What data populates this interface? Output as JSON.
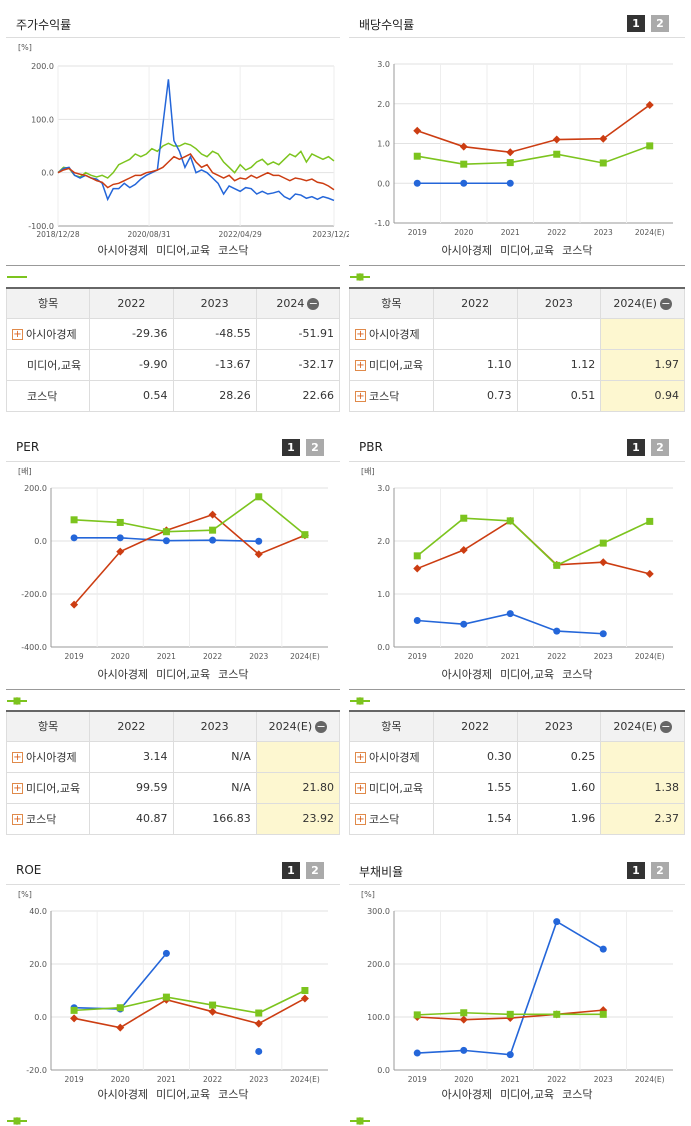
{
  "legend": [
    "아시아경제",
    "미디어,교육",
    "코스닥"
  ],
  "colors": {
    "s1": "#2466d9",
    "s2": "#cc3d12",
    "s3": "#7cc41e"
  },
  "page_buttons": [
    "1",
    "2"
  ],
  "chart_data": [
    {
      "id": "stock",
      "type": "line",
      "title": "주가수익률",
      "unit": "[%]",
      "ylim": [
        -100,
        200
      ],
      "yticks": [
        "200.0",
        "100.0",
        "0.0",
        "-100.0"
      ],
      "xticks": [
        "2018/12/28",
        "2020/08/31",
        "2022/04/29",
        "2023/12/28"
      ],
      "x": [
        0,
        2,
        4,
        6,
        8,
        10,
        12,
        14,
        16,
        18,
        20,
        22,
        24,
        26,
        28,
        30,
        32,
        34,
        36,
        38,
        40,
        42,
        44,
        46,
        48,
        50,
        52,
        54,
        56,
        58,
        60,
        62,
        64,
        66,
        68,
        70,
        72,
        74,
        76,
        78,
        80,
        82,
        84,
        86,
        88,
        90,
        92,
        94,
        96,
        98,
        100
      ],
      "series": [
        {
          "name": "아시아경제",
          "values": [
            0,
            8,
            10,
            -5,
            -10,
            -5,
            -10,
            -12,
            -20,
            -50,
            -30,
            -30,
            -20,
            -28,
            -22,
            -12,
            -5,
            0,
            5,
            90,
            175,
            60,
            40,
            10,
            30,
            0,
            5,
            0,
            -10,
            -20,
            -40,
            -25,
            -30,
            -35,
            -28,
            -30,
            -40,
            -35,
            -40,
            -38,
            -35,
            -45,
            -50,
            -40,
            -42,
            -48,
            -45,
            -50,
            -45,
            -48,
            -52
          ]
        },
        {
          "name": "미디어,교육",
          "values": [
            0,
            5,
            8,
            0,
            -3,
            -5,
            -10,
            -15,
            -18,
            -28,
            -22,
            -20,
            -15,
            -10,
            -5,
            -5,
            0,
            2,
            5,
            10,
            20,
            30,
            25,
            30,
            35,
            20,
            10,
            15,
            0,
            -5,
            -10,
            -5,
            -15,
            -10,
            -12,
            -5,
            -10,
            -5,
            0,
            -5,
            -5,
            -10,
            -15,
            -10,
            -12,
            -15,
            -12,
            -18,
            -20,
            -25,
            -32
          ]
        },
        {
          "name": "코스닥",
          "values": [
            0,
            10,
            8,
            -5,
            -8,
            0,
            -5,
            -8,
            -5,
            -10,
            0,
            15,
            20,
            25,
            35,
            30,
            35,
            45,
            40,
            50,
            55,
            50,
            50,
            55,
            52,
            45,
            35,
            30,
            40,
            35,
            20,
            10,
            0,
            15,
            5,
            10,
            20,
            25,
            15,
            20,
            15,
            25,
            35,
            30,
            40,
            20,
            35,
            30,
            25,
            30,
            22
          ]
        }
      ]
    },
    {
      "id": "div",
      "type": "line",
      "title": "배당수익률",
      "unit": "",
      "ylim": [
        -1.0,
        3.0
      ],
      "yticks": [
        "3.0",
        "2.0",
        "1.0",
        "0.0",
        "-1.0"
      ],
      "categories": [
        "2019",
        "2020",
        "2021",
        "2022",
        "2023",
        "2024(E)"
      ],
      "series": [
        {
          "name": "아시아경제",
          "values": [
            0.0,
            0.0,
            0.0,
            null,
            null,
            null
          ]
        },
        {
          "name": "미디어,교육",
          "values": [
            1.32,
            0.92,
            0.78,
            1.1,
            1.12,
            1.97
          ]
        },
        {
          "name": "코스닥",
          "values": [
            0.68,
            0.48,
            0.52,
            0.73,
            0.51,
            0.94
          ]
        }
      ]
    },
    {
      "id": "per",
      "type": "line",
      "title": "PER",
      "unit": "[배]",
      "ylim": [
        -400,
        200
      ],
      "yticks": [
        "200.0",
        "0.0",
        "-200.0",
        "-400.0"
      ],
      "categories": [
        "2019",
        "2020",
        "2021",
        "2022",
        "2023",
        "2024(E)"
      ],
      "series": [
        {
          "name": "아시아경제",
          "values": [
            12,
            12,
            1,
            3.14,
            -1,
            null
          ]
        },
        {
          "name": "미디어,교육",
          "values": [
            -240,
            -40,
            40,
            99.59,
            -50,
            21.8
          ]
        },
        {
          "name": "코스닥",
          "values": [
            80,
            70,
            35,
            40.87,
            166.83,
            23.92
          ]
        }
      ]
    },
    {
      "id": "pbr",
      "type": "line",
      "title": "PBR",
      "unit": "[배]",
      "ylim": [
        0.0,
        3.0
      ],
      "yticks": [
        "3.0",
        "2.0",
        "1.0",
        "0.0"
      ],
      "categories": [
        "2019",
        "2020",
        "2021",
        "2022",
        "2023",
        "2024(E)"
      ],
      "series": [
        {
          "name": "아시아경제",
          "values": [
            0.5,
            0.43,
            0.63,
            0.3,
            0.25,
            null
          ]
        },
        {
          "name": "미디어,교육",
          "values": [
            1.48,
            1.83,
            2.38,
            1.55,
            1.6,
            1.38
          ]
        },
        {
          "name": "코스닥",
          "values": [
            1.72,
            2.43,
            2.38,
            1.54,
            1.96,
            2.37
          ]
        }
      ]
    },
    {
      "id": "roe",
      "type": "line",
      "title": "ROE",
      "unit": "[%]",
      "ylim": [
        -20,
        40
      ],
      "yticks": [
        "40.0",
        "20.0",
        "0.0",
        "-20.0"
      ],
      "categories": [
        "2019",
        "2020",
        "2021",
        "2022",
        "2023",
        "2024(E)"
      ],
      "series": [
        {
          "name": "아시아경제",
          "values": [
            3.5,
            3.0,
            24.0,
            null,
            -13.0,
            null
          ]
        },
        {
          "name": "미디어,교육",
          "values": [
            -0.5,
            -4.0,
            6.5,
            2.0,
            -2.5,
            7.0
          ]
        },
        {
          "name": "코스닥",
          "values": [
            2.5,
            3.5,
            7.5,
            4.5,
            1.5,
            10.0
          ]
        }
      ]
    },
    {
      "id": "debt",
      "type": "line",
      "title": "부채비율",
      "unit": "[%]",
      "ylim": [
        0,
        300
      ],
      "yticks": [
        "300.0",
        "200.0",
        "100.0",
        "0.0"
      ],
      "categories": [
        "2019",
        "2020",
        "2021",
        "2022",
        "2023",
        "2024(E)"
      ],
      "series": [
        {
          "name": "아시아경제",
          "values": [
            32,
            37,
            29,
            280,
            228,
            null
          ]
        },
        {
          "name": "미디어,교육",
          "values": [
            100,
            95,
            98,
            105,
            113,
            null
          ]
        },
        {
          "name": "코스닥",
          "values": [
            104,
            108,
            105,
            105,
            105,
            null
          ]
        }
      ]
    }
  ],
  "tables": {
    "stock": {
      "header": [
        "항목",
        "2022",
        "2023",
        "2024"
      ],
      "highlight_last": false,
      "rows": [
        {
          "name": "아시아경제",
          "plus": true,
          "values": [
            "-29.36",
            "-48.55",
            "-51.91"
          ]
        },
        {
          "name": "미디어,교육",
          "plus": false,
          "values": [
            "-9.90",
            "-13.67",
            "-32.17"
          ]
        },
        {
          "name": "코스닥",
          "plus": false,
          "values": [
            "0.54",
            "28.26",
            "22.66"
          ]
        }
      ]
    },
    "div": {
      "header": [
        "항목",
        "2022",
        "2023",
        "2024(E)"
      ],
      "highlight_last": true,
      "rows": [
        {
          "name": "아시아경제",
          "plus": true,
          "values": [
            "",
            "",
            ""
          ]
        },
        {
          "name": "미디어,교육",
          "plus": true,
          "values": [
            "1.10",
            "1.12",
            "1.97"
          ]
        },
        {
          "name": "코스닥",
          "plus": true,
          "values": [
            "0.73",
            "0.51",
            "0.94"
          ]
        }
      ]
    },
    "per": {
      "header": [
        "항목",
        "2022",
        "2023",
        "2024(E)"
      ],
      "highlight_last": true,
      "rows": [
        {
          "name": "아시아경제",
          "plus": true,
          "values": [
            "3.14",
            "N/A",
            ""
          ]
        },
        {
          "name": "미디어,교육",
          "plus": true,
          "values": [
            "99.59",
            "N/A",
            "21.80"
          ]
        },
        {
          "name": "코스닥",
          "plus": true,
          "values": [
            "40.87",
            "166.83",
            "23.92"
          ]
        }
      ]
    },
    "pbr": {
      "header": [
        "항목",
        "2022",
        "2023",
        "2024(E)"
      ],
      "highlight_last": true,
      "rows": [
        {
          "name": "아시아경제",
          "plus": true,
          "values": [
            "0.30",
            "0.25",
            ""
          ]
        },
        {
          "name": "미디어,교육",
          "plus": true,
          "values": [
            "1.55",
            "1.60",
            "1.38"
          ]
        },
        {
          "name": "코스닥",
          "plus": true,
          "values": [
            "1.54",
            "1.96",
            "2.37"
          ]
        }
      ]
    }
  }
}
